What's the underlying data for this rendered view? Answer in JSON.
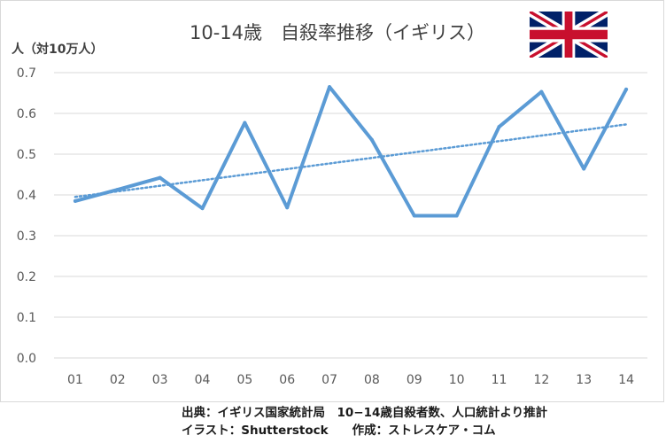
{
  "chart_data": {
    "type": "line",
    "title": "10-14歳　自殺率推移（イギリス）",
    "ylabel": "人（対10万人）",
    "xlabel": "",
    "categories": [
      "01",
      "02",
      "03",
      "04",
      "05",
      "06",
      "07",
      "08",
      "09",
      "10",
      "11",
      "12",
      "13",
      "14"
    ],
    "series": [
      {
        "values": [
          0.385,
          0.413,
          0.442,
          0.367,
          0.577,
          0.369,
          0.665,
          0.535,
          0.349,
          0.349,
          0.567,
          0.653,
          0.464,
          0.659
        ]
      }
    ],
    "trendline": {
      "type": "linear",
      "start": 0.395,
      "end": 0.573
    },
    "ylim": [
      0.0,
      0.7
    ],
    "yticks": [
      "0.0",
      "0.1",
      "0.2",
      "0.3",
      "0.4",
      "0.5",
      "0.6",
      "0.7"
    ],
    "grid": true,
    "legend": "none",
    "colors": {
      "line": "#5b9bd5",
      "trend": "#5b9bd5",
      "grid": "#d9d9d9",
      "text": "#595959"
    }
  },
  "flag": {
    "icon": "union-jack-flag-icon"
  },
  "credits": {
    "source": "出典：イギリス国家統計局　10−14歳自殺者数、人口統計より推計",
    "illustration": "イラスト：Shutterstock　　作成：ストレスケア・コム"
  }
}
